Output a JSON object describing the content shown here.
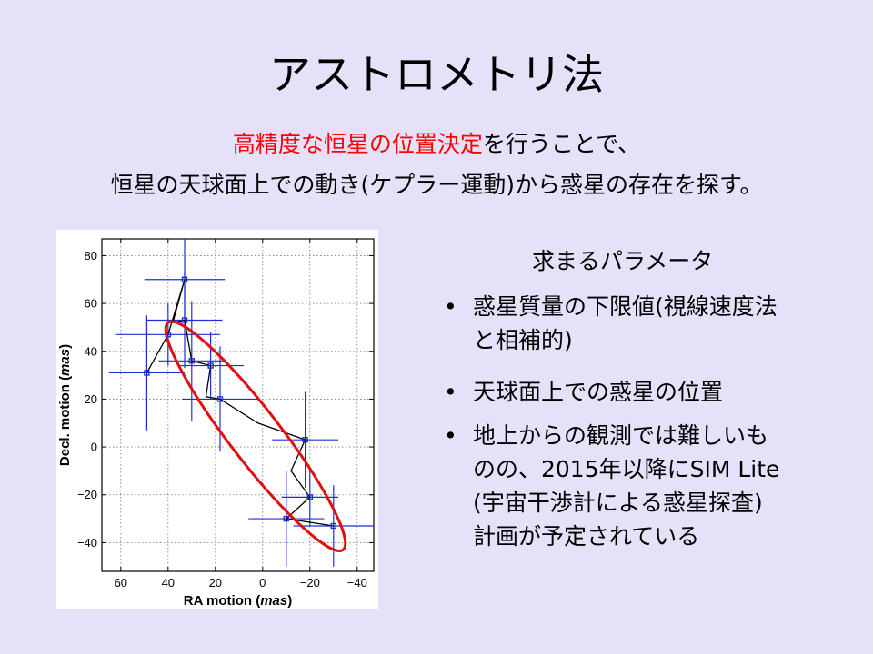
{
  "slide": {
    "title": "アストロメトリ法",
    "subtitle_line1_red": "高精度な恒星の位置決定",
    "subtitle_line1_rest": "を行うことで、",
    "subtitle_line2": "恒星の天球面上での動き(ケプラー運動)から惑星の存在を探す。"
  },
  "parameters": {
    "heading": "求まるパラメータ",
    "bullet_symbol": "•",
    "items": [
      {
        "lines": [
          "惑星質量の下限値(視線速度法",
          "と相補的)"
        ]
      },
      {
        "lines": [
          "天球面上での惑星の位置"
        ]
      },
      {
        "lines": [
          "地上からの観測では難しいも",
          "のの、2015年以降にSIM Lite",
          "(宇宙干渉計による惑星探査)",
          "計画が予定されている"
        ]
      }
    ]
  },
  "chart_data": {
    "type": "scatter",
    "xlabel": "RA motion (mas)",
    "xlabel_main": "RA motion",
    "xlabel_unit": "mas",
    "ylabel": "Decl. motion (mas)",
    "ylabel_main": "Decl. motion",
    "ylabel_unit": "mas",
    "xlim": [
      68,
      -47
    ],
    "ylim": [
      -52,
      87
    ],
    "x_ticks": [
      60,
      40,
      20,
      0,
      -20,
      -40
    ],
    "x_tick_labels": [
      "60",
      "40",
      "20",
      "0",
      "−20",
      "−40"
    ],
    "y_ticks": [
      80,
      60,
      40,
      20,
      0,
      -20,
      -40
    ],
    "y_tick_labels": [
      "80",
      "60",
      "40",
      "20",
      "0",
      "−20",
      "−40"
    ],
    "grid": true,
    "grid_style": "dotted",
    "colors": {
      "points": "#1f2fd6",
      "model_line": "#000000",
      "orbit": "#e01010"
    },
    "points": [
      {
        "x": 49,
        "y": 31,
        "xerr": 16,
        "yerr": 24
      },
      {
        "x": 40,
        "y": 47,
        "xerr": 22,
        "yerr": 13
      },
      {
        "x": 33,
        "y": 70,
        "xerr": 17,
        "yerr": 17
      },
      {
        "x": 33,
        "y": 53,
        "xerr": 16,
        "yerr": 20
      },
      {
        "x": 30,
        "y": 36,
        "xerr": 14,
        "yerr": 25
      },
      {
        "x": 22,
        "y": 34,
        "xerr": 14,
        "yerr": 14
      },
      {
        "x": 18,
        "y": 20,
        "xerr": 16,
        "yerr": 22
      },
      {
        "x": -18,
        "y": 3,
        "xerr": 14,
        "yerr": 20
      },
      {
        "x": -20,
        "y": -21,
        "xerr": 12,
        "yerr": 12
      },
      {
        "x": -10,
        "y": -30,
        "xerr": 16,
        "yerr": 20
      },
      {
        "x": -30,
        "y": -33,
        "xerr": 17,
        "yerr": 17
      }
    ],
    "model_path": [
      [
        49,
        31
      ],
      [
        40,
        47
      ],
      [
        33,
        70
      ],
      [
        38,
        52
      ],
      [
        33,
        53
      ],
      [
        30,
        36
      ],
      [
        22,
        34
      ],
      [
        24,
        21
      ],
      [
        18,
        20
      ],
      [
        2,
        10
      ],
      [
        -18,
        3
      ],
      [
        -12,
        -10
      ],
      [
        -20,
        -21
      ],
      [
        -10,
        -30
      ],
      [
        -30,
        -33
      ]
    ],
    "orbit_ellipse": {
      "center_x": 3,
      "center_y": 5,
      "major_end_1": [
        40,
        52
      ],
      "major_end_2": [
        -34,
        -43
      ],
      "semi_minor": 6
    }
  }
}
